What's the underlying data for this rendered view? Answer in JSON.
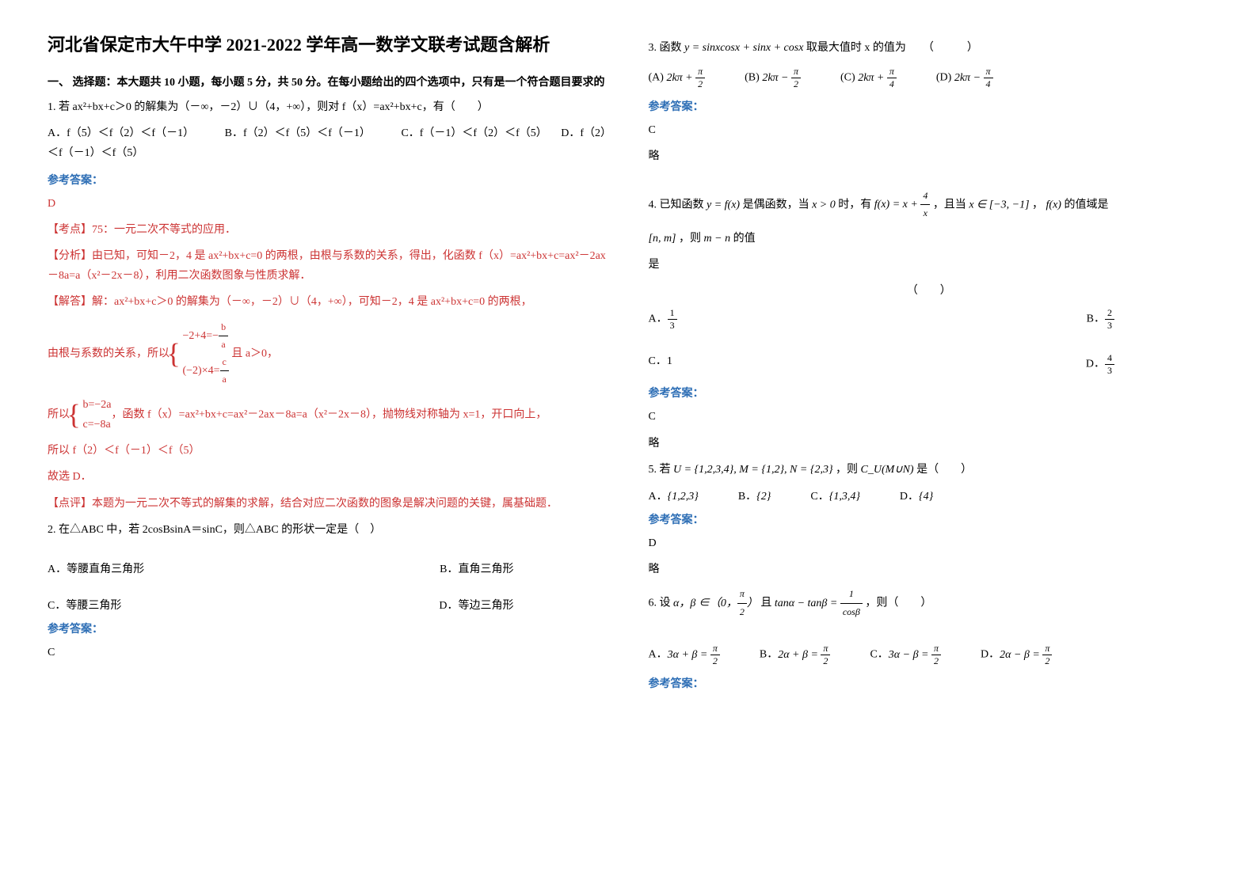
{
  "title": "河北省保定市大午中学 2021-2022 学年高一数学文联考试题含解析",
  "section1_heading": "一、 选择题：本大题共 10 小题，每小题 5 分，共 50 分。在每小题给出的四个选项中，只有是一个符合题目要求的",
  "q1": {
    "stem": "1. 若 ax²+bx+c＞0 的解集为（－∞，－2）∪（4，+∞），则对 f（x）=ax²+bx+c，有（　　）",
    "optA": "A．f（5）＜f（2）＜f（－1）",
    "optB": "B．f（2）＜f（5）＜f（－1）",
    "optC": "C．f（－1）＜f（2）＜f（5）",
    "optD": "D．f（2）＜f（－1）＜f（5）",
    "answer_label": "参考答案：",
    "answer": "D",
    "kaodian_label": "【考点】",
    "kaodian": "75：一元二次不等式的应用．",
    "fenxi_label": "【分析】",
    "fenxi": "由已知，可知－2，4 是 ax²+bx+c=0 的两根，由根与系数的关系，得出，化函数 f（x）=ax²+bx+c=ax²－2ax－8a=a（x²－2x－8），利用二次函数图象与性质求解．",
    "jieda_label": "【解答】",
    "jieda1": "解：ax²+bx+c＞0 的解集为（－∞，－2）∪（4，+∞），可知－2，4 是 ax²+bx+c=0 的两根，",
    "jieda2_pre": "由根与系数的关系，所以",
    "eq1_line1": "−2+4=−",
    "eq1_frac1_num": "b",
    "eq1_frac1_den": "a",
    "eq1_line2": "(−2)×4=",
    "eq1_frac2_num": "c",
    "eq1_frac2_den": "a",
    "jieda2_post": "且 a＞0，",
    "jieda3_pre": "所以",
    "eq2_line1": "b=−2a",
    "eq2_line2": "c=−8a",
    "jieda3_post": "，函数 f（x）=ax²+bx+c=ax²－2ax－8a=a（x²－2x－8），抛物线对称轴为 x=1，开口向上，",
    "jieda4": "所以 f（2）＜f（－1）＜f（5）",
    "jieda5": "故选 D．",
    "dianping_label": "【点评】",
    "dianping": "本题为一元二次不等式的解集的求解，结合对应二次函数的图象是解决问题的关键，属基础题．"
  },
  "q2": {
    "stem": "2. 在△ABC 中，若 2cosBsinA＝sinC，则△ABC 的形状一定是（　）",
    "optA": "A．等腰直角三角形",
    "optB": "B．直角三角形",
    "optC": "C．等腰三角形",
    "optD": "D．等边三角形",
    "answer_label": "参考答案：",
    "answer": "C"
  },
  "q3": {
    "stem_pre": "3. 函数",
    "stem_formula": "y = sinxcosx + sinx + cosx",
    "stem_post": "取最大值时 x 的值为　　（　　　）",
    "optA_label": "(A)",
    "optA_formula": "2kπ + π/2",
    "optB_label": "(B)",
    "optB_formula": "2kπ − π/2",
    "optC_label": "(C)",
    "optC_formula": "2kπ + π/4",
    "optD_label": "(D)",
    "optD_formula": "2kπ − π/4",
    "answer_label": "参考答案：",
    "answer": "C",
    "note": "略"
  },
  "q4": {
    "stem_p1": "4. 已知函数",
    "stem_f1": "y = f(x)",
    "stem_p2": "是偶函数，当",
    "stem_f2": "x > 0",
    "stem_p3": "时，有",
    "stem_f3_pre": "f(x) = x + ",
    "stem_f3_num": "4",
    "stem_f3_den": "x",
    "stem_p4": "，且当",
    "stem_f4": "x ∈ [−3, −1]",
    "stem_p5": "，",
    "stem_f5": "f(x)",
    "stem_p6": "的值域是",
    "stem_line2_f1": "[n, m]",
    "stem_line2_p1": "，则",
    "stem_line2_f2": "m − n",
    "stem_line2_p2": "的值",
    "stem_line3": "是",
    "stem_paren": "（　　）",
    "optA_label": "A．",
    "optA_num": "1",
    "optA_den": "3",
    "optB_label": "B．",
    "optB_num": "2",
    "optB_den": "3",
    "optC_label": "C．",
    "optC_val": "1",
    "optD_label": "D．",
    "optD_num": "4",
    "optD_den": "3",
    "answer_label": "参考答案：",
    "answer": "C",
    "note": "略"
  },
  "q5": {
    "stem_p1": "5. 若",
    "stem_f1": "U = {1,2,3,4}, M = {1,2}, N = {2,3}",
    "stem_p2": "，则",
    "stem_f2": "C_U(M∪N)",
    "stem_p3": "是（　　）",
    "optA_label": "A．",
    "optA_val": "{1,2,3}",
    "optB_label": "B．",
    "optB_val": "{2}",
    "optC_label": "C．",
    "optC_val": "{1,3,4}",
    "optD_label": "D．",
    "optD_val": "{4}",
    "answer_label": "参考答案：",
    "answer": "D",
    "note": "略"
  },
  "q6": {
    "stem_p1": "6. 设",
    "stem_f1": "α，β ∈（0，",
    "stem_frac1_num": "π",
    "stem_frac1_den": "2",
    "stem_f1b": "）",
    "stem_p2": "且",
    "stem_f2_pre": "tanα − tanβ = ",
    "stem_f2_num": "1",
    "stem_f2_den": "cosβ",
    "stem_p3": "，则（　　）",
    "optA_label": "A．",
    "optA_lhs": "3α + β = ",
    "optA_num": "π",
    "optA_den": "2",
    "optB_label": "B．",
    "optB_lhs": "2α + β = ",
    "optB_num": "π",
    "optB_den": "2",
    "optC_label": "C．",
    "optC_lhs": "3α − β = ",
    "optC_num": "π",
    "optC_den": "2",
    "optD_label": "D．",
    "optD_lhs": "2α − β = ",
    "optD_num": "π",
    "optD_den": "2",
    "answer_label": "参考答案："
  }
}
